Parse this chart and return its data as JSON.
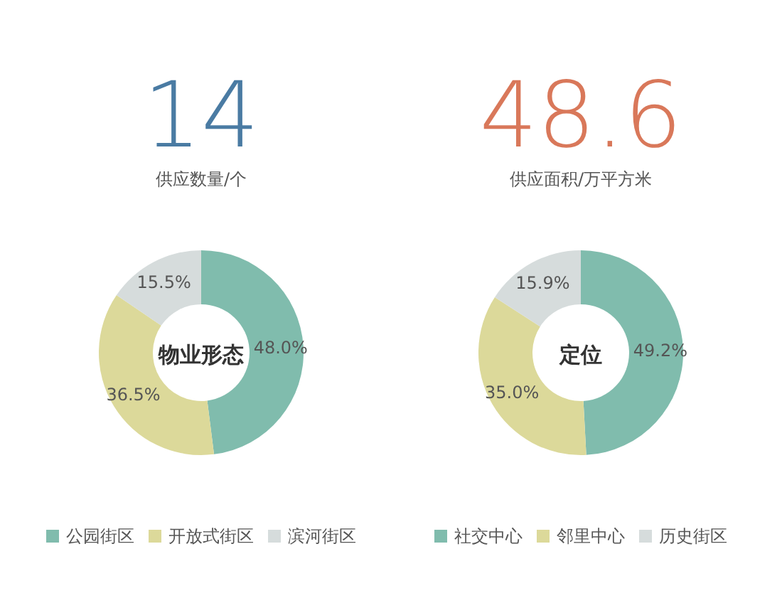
{
  "chart_data": [
    {
      "type": "donut",
      "title": "物业形态",
      "annotations": [
        "14",
        "供应数量/个"
      ],
      "categories": [
        "公园街区",
        "开放式街区",
        "滨河街区"
      ],
      "values": [
        48.0,
        36.5,
        15.5
      ],
      "colors": [
        "#80bcad",
        "#dcd99a",
        "#d6dcdc"
      ],
      "value_labels": [
        "48.0%",
        "36.5%",
        "15.5%"
      ],
      "legend": "bottom"
    },
    {
      "type": "donut",
      "title": "定位",
      "annotations": [
        "48.6",
        "供应面积/万平方米"
      ],
      "categories": [
        "社交中心",
        "邻里中心",
        "历史街区"
      ],
      "values": [
        49.2,
        35.0,
        15.9
      ],
      "colors": [
        "#80bcad",
        "#dcd99a",
        "#d6dcdc"
      ],
      "value_labels": [
        "49.2%",
        "35.0%",
        "15.9%"
      ],
      "legend": "bottom"
    }
  ]
}
